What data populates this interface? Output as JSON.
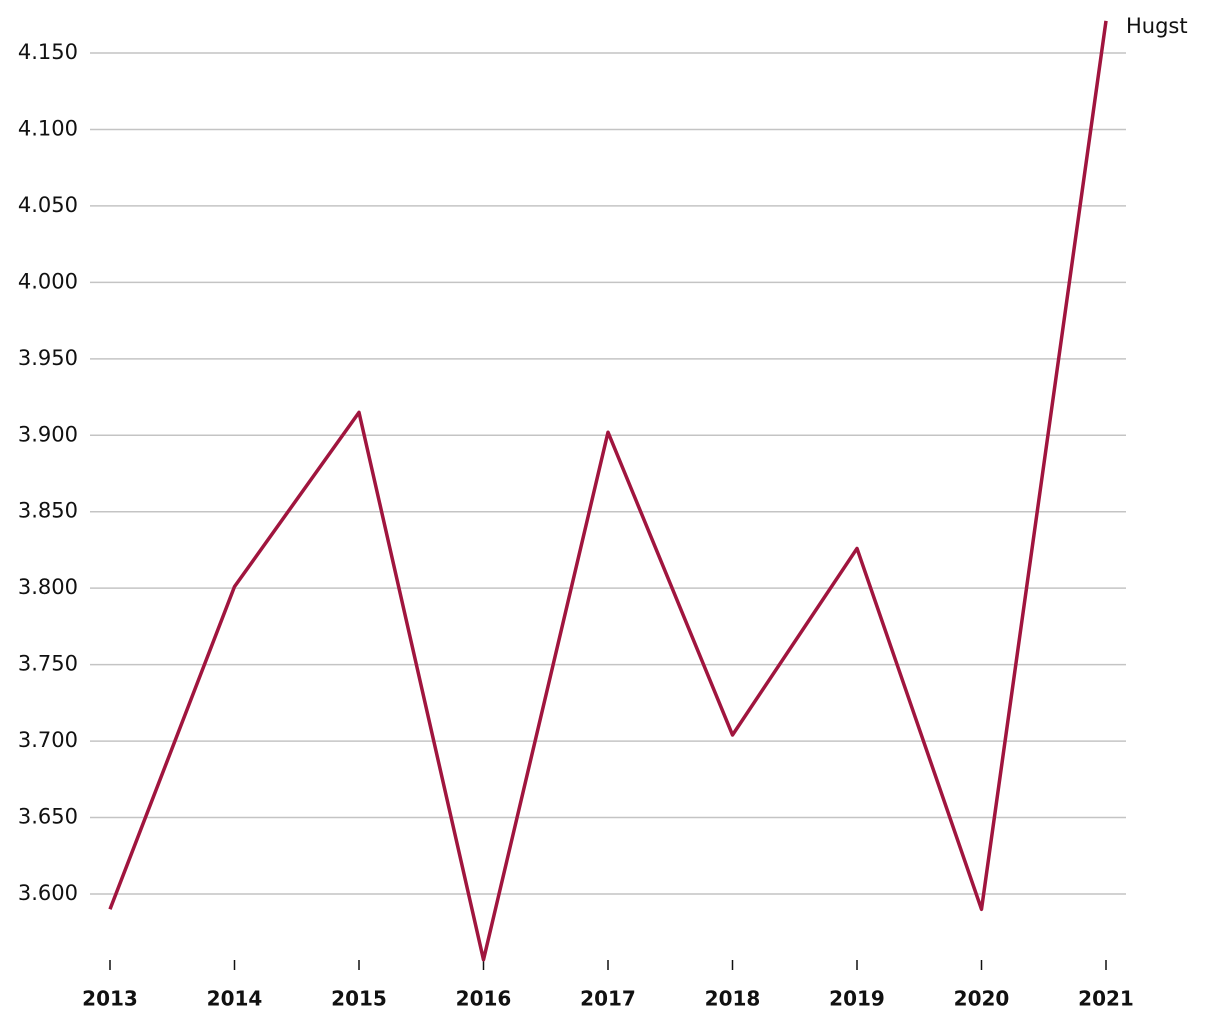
{
  "chart_data": {
    "type": "line",
    "categories": [
      "2013",
      "2014",
      "2015",
      "2016",
      "2017",
      "2018",
      "2019",
      "2020",
      "2021"
    ],
    "series": [
      {
        "name": "Hugst",
        "color": "#a0153e",
        "values": [
          3590,
          3801,
          3915,
          3557,
          3902,
          3704,
          3826,
          3590,
          4171
        ]
      }
    ],
    "ylim": [
      3555,
      4175
    ],
    "yticks": [
      {
        "value": 3600,
        "label": "3.600"
      },
      {
        "value": 3650,
        "label": "3.650"
      },
      {
        "value": 3700,
        "label": "3.700"
      },
      {
        "value": 3750,
        "label": "3.750"
      },
      {
        "value": 3800,
        "label": "3.800"
      },
      {
        "value": 3850,
        "label": "3.850"
      },
      {
        "value": 3900,
        "label": "3.900"
      },
      {
        "value": 3950,
        "label": "3.950"
      },
      {
        "value": 4000,
        "label": "4.000"
      },
      {
        "value": 4050,
        "label": "4.050"
      },
      {
        "value": 4100,
        "label": "4.100"
      },
      {
        "value": 4150,
        "label": "4.150"
      }
    ],
    "grid": true
  }
}
